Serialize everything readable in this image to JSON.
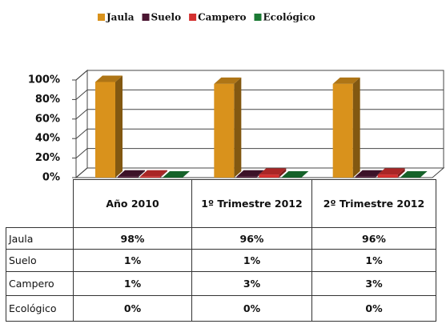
{
  "chart_data": {
    "type": "bar3d",
    "categories": [
      "Año 2010",
      "1º Trimestre 2012",
      "2º Trimestre 2012"
    ],
    "series": [
      {
        "name": "Jaula",
        "color": "#d9921c",
        "values": [
          98,
          96,
          96
        ],
        "value_labels": [
          "98%",
          "96%",
          "96%"
        ]
      },
      {
        "name": "Suelo",
        "color": "#4b1632",
        "values": [
          1,
          1,
          1
        ],
        "value_labels": [
          "1%",
          "1%",
          "1%"
        ]
      },
      {
        "name": "Campero",
        "color": "#d3302f",
        "values": [
          1,
          3,
          3
        ],
        "value_labels": [
          "1%",
          "3%",
          "3%"
        ]
      },
      {
        "name": "Ecológico",
        "color": "#1b7a34",
        "values": [
          0,
          0,
          0
        ],
        "value_labels": [
          "0%",
          "0%",
          "0%"
        ]
      }
    ],
    "ylim": [
      0,
      100
    ],
    "yticks": [
      {
        "value": 0,
        "label": "0%"
      },
      {
        "value": 20,
        "label": "20%"
      },
      {
        "value": 40,
        "label": "40%"
      },
      {
        "value": 60,
        "label": "60%"
      },
      {
        "value": 80,
        "label": "80%"
      },
      {
        "value": 100,
        "label": "100%"
      }
    ],
    "grid": true,
    "legend": "top"
  }
}
